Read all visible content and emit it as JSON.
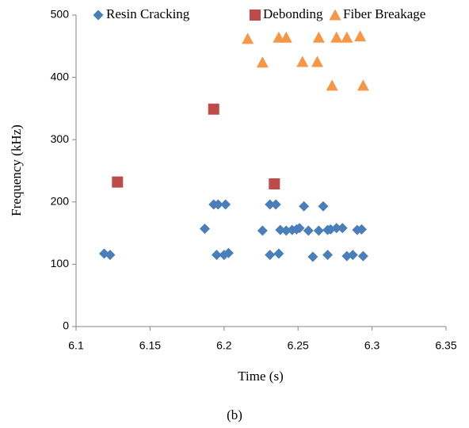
{
  "chart_data": {
    "type": "scatter",
    "x_label": "Time (s)",
    "y_label": "Frequency (kHz)",
    "caption": "(b)",
    "xlim": [
      6.1,
      6.35
    ],
    "xticks": [
      6.1,
      6.15,
      6.2,
      6.25,
      6.3,
      6.35
    ],
    "ylim": [
      0,
      500
    ],
    "yticks": [
      0,
      100,
      200,
      300,
      400,
      500
    ],
    "grid": false,
    "legend": "top",
    "series": [
      {
        "name": "Resin Cracking",
        "color": "#4a7ebb",
        "marker": "diamond",
        "x": [
          6.119,
          6.123,
          6.187,
          6.193,
          6.196,
          6.201,
          6.195,
          6.2,
          6.203,
          6.226,
          6.231,
          6.235,
          6.231,
          6.237,
          6.238,
          6.242,
          6.246,
          6.249,
          6.251,
          6.254,
          6.257,
          6.26,
          6.264,
          6.267,
          6.27,
          6.27,
          6.272,
          6.276,
          6.28,
          6.283,
          6.287,
          6.29,
          6.293,
          6.294
        ],
        "values": [
          117,
          115,
          157,
          196,
          196,
          196,
          115,
          115,
          118,
          154,
          196,
          196,
          115,
          117,
          155,
          154,
          155,
          156,
          158,
          193,
          154,
          112,
          154,
          193,
          155,
          115,
          156,
          158,
          158,
          113,
          115,
          155,
          156,
          113
        ]
      },
      {
        "name": "Debonding",
        "color": "#be4b48",
        "marker": "square",
        "x": [
          6.128,
          6.193,
          6.234
        ],
        "values": [
          232,
          349,
          229
        ]
      },
      {
        "name": "Fiber Breakage",
        "color": "#f79646",
        "marker": "triangle",
        "x": [
          6.216,
          6.226,
          6.237,
          6.242,
          6.253,
          6.263,
          6.264,
          6.273,
          6.276,
          6.283,
          6.292,
          6.294
        ],
        "values": [
          462,
          424,
          464,
          464,
          425,
          425,
          464,
          387,
          464,
          464,
          466,
          387
        ]
      }
    ]
  }
}
